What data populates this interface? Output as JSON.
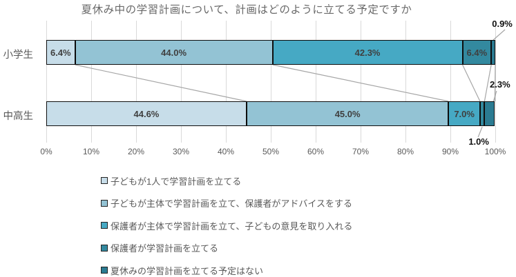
{
  "chart_data": {
    "type": "stacked_bar_horizontal",
    "title": "夏休み中の学習計画について、計画はどのように立てる予定ですか",
    "categories": [
      "小学生",
      "中高生"
    ],
    "series": [
      {
        "name": "子どもが1人で学習計画を立てる",
        "color": "#c7dde9",
        "values": [
          6.4,
          44.6
        ],
        "labels": [
          "6.4%",
          "44.6%"
        ]
      },
      {
        "name": "子どもが主体で学習計画を立て、保護者がアドバイスをする",
        "color": "#93c3d4",
        "values": [
          44.0,
          45.0
        ],
        "labels": [
          "44.0%",
          "45.0%"
        ]
      },
      {
        "name": "保護者が主体で学習計画を立て、子どもの意見を取り入れる",
        "color": "#46a9c4",
        "values": [
          42.3,
          7.0
        ],
        "labels": [
          "42.3%",
          "7.0%"
        ]
      },
      {
        "name": "保護者が学習計画を立てる",
        "color": "#33899f",
        "values": [
          6.4,
          1.0
        ],
        "labels": [
          "6.4%",
          "1.0%"
        ]
      },
      {
        "name": "夏休みの学習計画を立てる予定はない",
        "color": "#2b7b92",
        "values": [
          0.9,
          2.3
        ],
        "labels": [
          "0.9%",
          "2.3%"
        ]
      }
    ],
    "x_ticks": [
      "0%",
      "10%",
      "20%",
      "30%",
      "40%",
      "50%",
      "60%",
      "70%",
      "80%",
      "90%",
      "100%"
    ],
    "xlim": [
      0,
      100
    ],
    "grid": true,
    "legend_position": "bottom-left",
    "callouts": [
      {
        "category_index": 0,
        "series_index": 4,
        "label": "0.9%",
        "placement": "top"
      },
      {
        "category_index": 1,
        "series_index": 4,
        "label": "2.3%",
        "placement": "right"
      },
      {
        "category_index": 1,
        "series_index": 3,
        "label": "1.0%",
        "placement": "bottom"
      }
    ],
    "colors": {
      "gridline": "#d9d9d9",
      "connector_line": "#a6a6a6",
      "segment_border": "#0d0d0d",
      "inside_label": "#3f3f3f",
      "callout_label": "#111111",
      "axis_text": "#595959",
      "title_text": "#696969"
    }
  }
}
